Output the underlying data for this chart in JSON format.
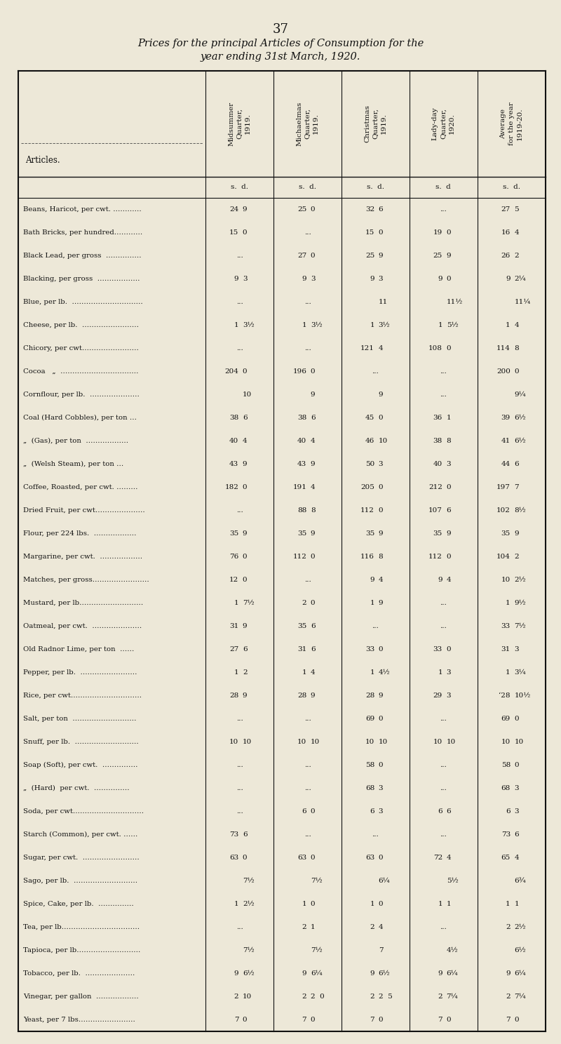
{
  "page_number": "37",
  "title_line1": "Prices for the principal Articles of Consumption for the",
  "title_line2": "year ending 31st March, 1920.",
  "background_color": "#ede8d8",
  "col_headers": [
    "Articles.",
    "Midsummer\nQuarter,\n1919.",
    "Michaelmas\nQuarter,\n1919.",
    "Christmas\nQuarter,\n1919.",
    "Lady-day\nQuarter,\n1920.",
    "Average\nfor the year\n1919-20."
  ],
  "subheaders": [
    "s.  d.",
    "s.  d.",
    "s.  d.",
    "s.  d",
    "s.  d."
  ],
  "rows": [
    [
      "Beans, Haricot, per cwt. …………",
      "24",
      "9",
      "25",
      "0",
      "32",
      "6",
      "",
      "...",
      "27",
      "5"
    ],
    [
      "Bath Bricks, per hundred…………",
      "15",
      "0",
      "",
      "...",
      "15",
      "0",
      "19",
      "0",
      "16",
      "4"
    ],
    [
      "Black Lead, per gross  ……………",
      "",
      "...",
      "27",
      "0",
      "25",
      "9",
      "25",
      "9",
      "26",
      "2"
    ],
    [
      "Blacking, per gross  ………………",
      "9",
      "3",
      "9",
      "3",
      "9",
      "3",
      "9",
      "0",
      "9",
      "2¼"
    ],
    [
      "Blue, per lb.  …………………………",
      "",
      "...",
      "",
      "...",
      "",
      "11",
      "",
      "11½",
      "",
      "11¼"
    ],
    [
      "Cheese, per lb.  ……………………",
      "1",
      "3½",
      "1",
      "3½",
      "1",
      "3½",
      "1",
      "5½",
      "1",
      "4"
    ],
    [
      "Chicory, per cwt……………………",
      "",
      "...",
      "",
      "...",
      "121",
      "4",
      "108",
      "0",
      "114",
      "8"
    ],
    [
      "Cocoa   „  ……………………………",
      "204",
      "0",
      "196",
      "0",
      "",
      "...",
      "",
      "...",
      "200",
      "0"
    ],
    [
      "Cornflour, per lb.  …………………",
      "",
      "10",
      "",
      "9",
      "",
      "9",
      "",
      "...",
      "",
      "9¼"
    ],
    [
      "Coal (Hard Cobbles), per ton …",
      "38",
      "6",
      "38",
      "6",
      "45",
      "0",
      "36",
      "1",
      "39",
      "6½"
    ],
    [
      "„  (Gas), per ton  ………………",
      "40",
      "4",
      "40",
      "4",
      "46",
      "10",
      "38",
      "8",
      "41",
      "6½"
    ],
    [
      "„  (Welsh Steam), per ton …",
      "43",
      "9",
      "43",
      "9",
      "50",
      "3",
      "40",
      "3",
      "44",
      "6"
    ],
    [
      "Coffee, Roasted, per cwt. ………",
      "182",
      "0",
      "191",
      "4",
      "205",
      "0",
      "212",
      "0",
      "197",
      "7"
    ],
    [
      "Dried Fruit, per cwt…………………",
      "",
      "...",
      "88",
      "8",
      "112",
      "0",
      "107",
      "6",
      "102",
      "8½"
    ],
    [
      "Flour, per 224 lbs.  ………………",
      "35",
      "9",
      "35",
      "9",
      "35",
      "9",
      "35",
      "9",
      "35",
      "9"
    ],
    [
      "Margarine, per cwt.  ………………",
      "76",
      "0",
      "112",
      "0",
      "116",
      "8",
      "112",
      "0",
      "104",
      "2"
    ],
    [
      "Matches, per gross……………………",
      "12",
      "0",
      "",
      "...",
      "9",
      "4",
      "9",
      "4",
      "10",
      "2½"
    ],
    [
      "Mustard, per lb………………………",
      "1",
      "7½",
      "2",
      "0",
      "1",
      "9",
      "",
      "...",
      "1",
      "9½"
    ],
    [
      "Oatmeal, per cwt.  …………………",
      "31",
      "9",
      "35",
      "6",
      "",
      "...",
      "",
      "...",
      "33",
      "7½"
    ],
    [
      "Old Radnor Lime, per ton  ……",
      "27",
      "6",
      "31",
      "6",
      "33",
      "0",
      "33",
      "0",
      "31",
      "3"
    ],
    [
      "Pepper, per lb.  ……………………",
      "1",
      "2",
      "1",
      "4",
      "1",
      "4½",
      "1",
      "3",
      "1",
      "3¼"
    ],
    [
      "Rice, per cwt…………………………",
      "28",
      "9",
      "28",
      "9",
      "28",
      "9",
      "29",
      "3",
      "‘28",
      "10½"
    ],
    [
      "Salt, per ton  ………………………",
      "",
      "...",
      "",
      "...",
      "69",
      "0",
      "",
      "...",
      "69",
      "0"
    ],
    [
      "Snuff, per lb.  ………………………",
      "10",
      "10",
      "10",
      "10",
      "10",
      "10",
      "10",
      "10",
      "10",
      "10"
    ],
    [
      "Soap (Soft), per cwt.  ……………",
      "",
      "...",
      "",
      "...",
      "58",
      "0",
      "",
      "...",
      "58",
      "0"
    ],
    [
      "„  (Hard)  per cwt.  ……………",
      "",
      "...",
      "",
      "...",
      "68",
      "3",
      "",
      "...",
      "68",
      "3"
    ],
    [
      "Soda, per cwt…………………………",
      "",
      "...",
      "6",
      "0",
      "6",
      "3",
      "6",
      "6",
      "6",
      "3"
    ],
    [
      "Starch (Common), per cwt. ……",
      "73",
      "6",
      "",
      "...",
      "",
      "...",
      "",
      "...",
      "73",
      "6"
    ],
    [
      "Sugar, per cwt.  ……………………",
      "63",
      "0",
      "63",
      "0",
      "63",
      "0",
      "72",
      "4",
      "65",
      "4"
    ],
    [
      "Sago, per lb.  ………………………",
      "",
      "7½",
      "",
      "7½",
      "",
      "6¼",
      "",
      "5½",
      "",
      "6¾"
    ],
    [
      "Spice, Cake, per lb.  ……………",
      "1",
      "2½",
      "1",
      "0",
      "1",
      "0",
      "1",
      "1",
      "1",
      "1"
    ],
    [
      "Tea, per lb……………………………",
      "",
      "...",
      "2",
      "1",
      "2",
      "4",
      "",
      "...",
      "2",
      "2½"
    ],
    [
      "Tapioca, per lb………………………",
      "",
      "7½",
      "",
      "7½",
      "",
      "7",
      "",
      "4½",
      "",
      "6½"
    ],
    [
      "Tobacco, per lb.  …………………",
      "9",
      "6½",
      "9",
      "6¼",
      "9",
      "6½",
      "9",
      "6¼",
      "9",
      "6¼"
    ],
    [
      "Vinegar, per gallon  ………………",
      "2",
      "10",
      "2",
      "2  0",
      "2",
      "2  5",
      "2",
      "7¼",
      "2",
      "7¼"
    ],
    [
      "Yeast, per 7 lbs……………………",
      "7",
      "0",
      "7",
      "0",
      "7",
      "0",
      "7",
      "0",
      "7",
      "0"
    ]
  ]
}
